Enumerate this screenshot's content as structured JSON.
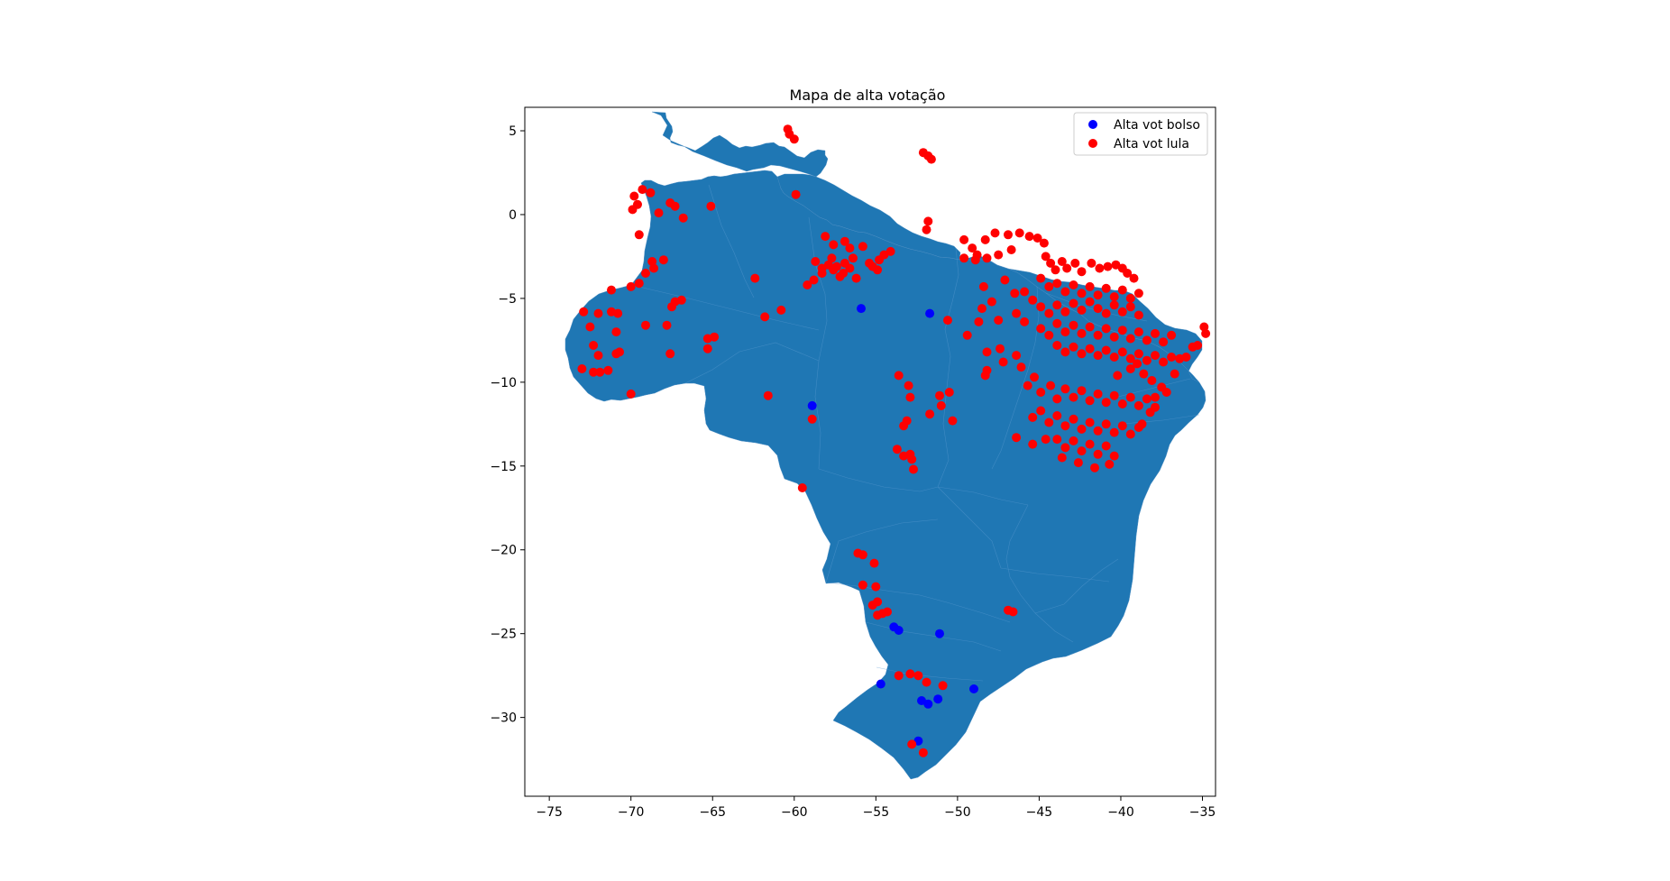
{
  "chart_data": {
    "type": "scatter",
    "title": "Mapa de alta votação",
    "xlabel": "",
    "ylabel": "",
    "xlim": [
      -76.5,
      -34.2
    ],
    "ylim": [
      -34.7,
      6.4
    ],
    "x_ticks": [
      -75,
      -70,
      -65,
      -60,
      -55,
      -50,
      -45,
      -40,
      -35
    ],
    "y_ticks": [
      5,
      0,
      -5,
      -10,
      -15,
      -20,
      -25,
      -30
    ],
    "x_tick_labels": [
      "−75",
      "−70",
      "−65",
      "−60",
      "−55",
      "−50",
      "−45",
      "−40",
      "−35"
    ],
    "y_tick_labels": [
      "5",
      "0",
      "−5",
      "−10",
      "−15",
      "−20",
      "−25",
      "−30"
    ],
    "grid": false,
    "legend_position": "top-right",
    "basemap_color": "#1f77b4",
    "series": [
      {
        "name": "Alta vot bolso",
        "color": "#0000ff",
        "points": [
          [
            -55.9,
            -5.6
          ],
          [
            -51.7,
            -5.9
          ],
          [
            -58.9,
            -11.4
          ],
          [
            -53.9,
            -24.6
          ],
          [
            -53.6,
            -24.8
          ],
          [
            -51.1,
            -25.0
          ],
          [
            -54.7,
            -28.0
          ],
          [
            -49.0,
            -28.3
          ],
          [
            -52.2,
            -29.0
          ],
          [
            -51.8,
            -29.2
          ],
          [
            -51.2,
            -28.9
          ],
          [
            -52.4,
            -31.4
          ]
        ]
      },
      {
        "name": "Alta vot lula",
        "color": "#ff0000",
        "points": [
          [
            -60.4,
            5.1
          ],
          [
            -60.3,
            4.8
          ],
          [
            -60.0,
            4.5
          ],
          [
            -59.9,
            1.2
          ],
          [
            -52.1,
            3.7
          ],
          [
            -51.8,
            3.5
          ],
          [
            -51.6,
            3.3
          ],
          [
            -69.8,
            1.1
          ],
          [
            -69.6,
            0.6
          ],
          [
            -69.9,
            0.3
          ],
          [
            -69.3,
            1.5
          ],
          [
            -68.8,
            1.3
          ],
          [
            -67.6,
            0.7
          ],
          [
            -67.3,
            0.5
          ],
          [
            -66.8,
            -0.2
          ],
          [
            -68.3,
            0.1
          ],
          [
            -65.1,
            0.5
          ],
          [
            -69.5,
            -1.2
          ],
          [
            -68.7,
            -2.8
          ],
          [
            -68.0,
            -2.7
          ],
          [
            -69.1,
            -3.5
          ],
          [
            -69.5,
            -4.1
          ],
          [
            -68.6,
            -3.2
          ],
          [
            -71.2,
            -4.5
          ],
          [
            -70.0,
            -4.3
          ],
          [
            -67.3,
            -5.2
          ],
          [
            -67.5,
            -5.5
          ],
          [
            -66.9,
            -5.1
          ],
          [
            -72.9,
            -5.8
          ],
          [
            -72.0,
            -5.9
          ],
          [
            -71.2,
            -5.8
          ],
          [
            -70.8,
            -5.9
          ],
          [
            -72.5,
            -6.7
          ],
          [
            -70.9,
            -7.0
          ],
          [
            -69.1,
            -6.6
          ],
          [
            -67.8,
            -6.6
          ],
          [
            -72.3,
            -7.8
          ],
          [
            -72.0,
            -8.4
          ],
          [
            -70.7,
            -8.2
          ],
          [
            -70.9,
            -8.3
          ],
          [
            -67.6,
            -8.3
          ],
          [
            -73.0,
            -9.2
          ],
          [
            -72.3,
            -9.4
          ],
          [
            -71.9,
            -9.4
          ],
          [
            -71.4,
            -9.3
          ],
          [
            -70.0,
            -10.7
          ],
          [
            -65.3,
            -7.4
          ],
          [
            -64.9,
            -7.3
          ],
          [
            -65.3,
            -8.0
          ],
          [
            -62.4,
            -3.8
          ],
          [
            -61.8,
            -6.1
          ],
          [
            -60.8,
            -5.7
          ],
          [
            -61.6,
            -10.8
          ],
          [
            -58.7,
            -2.8
          ],
          [
            -58.3,
            -3.2
          ],
          [
            -57.9,
            -3.0
          ],
          [
            -57.6,
            -3.3
          ],
          [
            -57.4,
            -3.1
          ],
          [
            -57.2,
            -3.7
          ],
          [
            -57.0,
            -3.5
          ],
          [
            -56.9,
            -2.9
          ],
          [
            -56.6,
            -3.2
          ],
          [
            -56.4,
            -2.6
          ],
          [
            -56.2,
            -3.8
          ],
          [
            -57.7,
            -2.6
          ],
          [
            -58.1,
            -1.3
          ],
          [
            -57.6,
            -1.8
          ],
          [
            -56.6,
            -2.0
          ],
          [
            -55.8,
            -1.9
          ],
          [
            -55.4,
            -2.9
          ],
          [
            -54.8,
            -2.7
          ],
          [
            -54.5,
            -2.4
          ],
          [
            -54.1,
            -2.2
          ],
          [
            -55.2,
            -3.1
          ],
          [
            -54.9,
            -3.3
          ],
          [
            -56.9,
            -1.6
          ],
          [
            -58.3,
            -3.5
          ],
          [
            -58.8,
            -3.9
          ],
          [
            -51.8,
            -0.4
          ],
          [
            -51.9,
            -0.9
          ],
          [
            -50.6,
            -6.3
          ],
          [
            -59.2,
            -4.2
          ],
          [
            -49.6,
            -1.5
          ],
          [
            -49.1,
            -2.0
          ],
          [
            -48.3,
            -1.5
          ],
          [
            -47.7,
            -1.1
          ],
          [
            -46.9,
            -1.2
          ],
          [
            -46.2,
            -1.1
          ],
          [
            -45.6,
            -1.3
          ],
          [
            -45.1,
            -1.4
          ],
          [
            -44.7,
            -1.7
          ],
          [
            -49.6,
            -2.6
          ],
          [
            -48.8,
            -2.4
          ],
          [
            -48.2,
            -2.6
          ],
          [
            -47.5,
            -2.4
          ],
          [
            -46.7,
            -2.1
          ],
          [
            -44.6,
            -2.5
          ],
          [
            -44.3,
            -2.9
          ],
          [
            -44.0,
            -3.3
          ],
          [
            -43.6,
            -2.8
          ],
          [
            -43.3,
            -3.2
          ],
          [
            -42.8,
            -2.9
          ],
          [
            -42.4,
            -3.4
          ],
          [
            -41.8,
            -2.9
          ],
          [
            -41.3,
            -3.2
          ],
          [
            -40.8,
            -3.1
          ],
          [
            -40.3,
            -3.0
          ],
          [
            -39.9,
            -3.2
          ],
          [
            -39.6,
            -3.5
          ],
          [
            -39.2,
            -3.8
          ],
          [
            -44.9,
            -3.8
          ],
          [
            -44.4,
            -4.3
          ],
          [
            -43.9,
            -4.1
          ],
          [
            -43.4,
            -4.6
          ],
          [
            -42.9,
            -4.2
          ],
          [
            -42.4,
            -4.7
          ],
          [
            -41.9,
            -4.3
          ],
          [
            -41.4,
            -4.8
          ],
          [
            -40.9,
            -4.4
          ],
          [
            -40.4,
            -4.9
          ],
          [
            -39.9,
            -4.5
          ],
          [
            -39.4,
            -5.0
          ],
          [
            -38.9,
            -4.7
          ],
          [
            -45.9,
            -4.6
          ],
          [
            -45.4,
            -5.1
          ],
          [
            -44.9,
            -5.5
          ],
          [
            -44.4,
            -5.9
          ],
          [
            -43.9,
            -5.4
          ],
          [
            -43.4,
            -5.8
          ],
          [
            -42.9,
            -5.3
          ],
          [
            -42.4,
            -5.7
          ],
          [
            -41.9,
            -5.2
          ],
          [
            -41.4,
            -5.6
          ],
          [
            -40.9,
            -5.9
          ],
          [
            -40.4,
            -5.4
          ],
          [
            -39.9,
            -5.8
          ],
          [
            -39.4,
            -5.5
          ],
          [
            -38.9,
            -6.0
          ],
          [
            -46.4,
            -5.9
          ],
          [
            -45.9,
            -6.4
          ],
          [
            -44.9,
            -6.8
          ],
          [
            -44.4,
            -7.2
          ],
          [
            -43.9,
            -6.5
          ],
          [
            -43.4,
            -7.0
          ],
          [
            -42.9,
            -6.6
          ],
          [
            -42.4,
            -7.1
          ],
          [
            -41.9,
            -6.7
          ],
          [
            -41.4,
            -7.2
          ],
          [
            -40.9,
            -6.8
          ],
          [
            -40.4,
            -7.3
          ],
          [
            -39.9,
            -6.9
          ],
          [
            -39.4,
            -7.4
          ],
          [
            -38.9,
            -7.0
          ],
          [
            -38.4,
            -7.5
          ],
          [
            -37.9,
            -7.1
          ],
          [
            -37.4,
            -7.6
          ],
          [
            -36.9,
            -7.2
          ],
          [
            -43.9,
            -7.8
          ],
          [
            -43.4,
            -8.2
          ],
          [
            -42.9,
            -7.9
          ],
          [
            -42.4,
            -8.3
          ],
          [
            -41.9,
            -8.0
          ],
          [
            -41.4,
            -8.4
          ],
          [
            -40.9,
            -8.1
          ],
          [
            -40.4,
            -8.5
          ],
          [
            -39.9,
            -8.2
          ],
          [
            -39.4,
            -8.6
          ],
          [
            -38.9,
            -8.3
          ],
          [
            -38.4,
            -8.7
          ],
          [
            -37.9,
            -8.4
          ],
          [
            -37.4,
            -8.8
          ],
          [
            -36.9,
            -8.5
          ],
          [
            -36.4,
            -8.6
          ],
          [
            -36.0,
            -8.5
          ],
          [
            -34.9,
            -6.7
          ],
          [
            -34.8,
            -7.1
          ],
          [
            -35.3,
            -7.8
          ],
          [
            -35.6,
            -7.9
          ],
          [
            -48.9,
            -2.7
          ],
          [
            -48.4,
            -4.3
          ],
          [
            -47.1,
            -3.9
          ],
          [
            -46.5,
            -4.7
          ],
          [
            -47.9,
            -5.2
          ],
          [
            -48.5,
            -5.6
          ],
          [
            -47.5,
            -6.3
          ],
          [
            -48.7,
            -6.4
          ],
          [
            -49.4,
            -7.2
          ],
          [
            -47.4,
            -8.0
          ],
          [
            -48.2,
            -8.2
          ],
          [
            -47.2,
            -8.8
          ],
          [
            -48.2,
            -9.3
          ],
          [
            -48.3,
            -9.6
          ],
          [
            -46.4,
            -8.4
          ],
          [
            -46.1,
            -9.1
          ],
          [
            -45.7,
            -10.2
          ],
          [
            -45.3,
            -9.7
          ],
          [
            -44.9,
            -10.6
          ],
          [
            -44.3,
            -10.2
          ],
          [
            -43.9,
            -11.0
          ],
          [
            -43.4,
            -10.4
          ],
          [
            -42.9,
            -10.9
          ],
          [
            -42.4,
            -10.5
          ],
          [
            -41.9,
            -11.1
          ],
          [
            -41.4,
            -10.7
          ],
          [
            -40.9,
            -11.2
          ],
          [
            -40.4,
            -10.8
          ],
          [
            -39.9,
            -11.3
          ],
          [
            -39.4,
            -10.9
          ],
          [
            -38.9,
            -11.4
          ],
          [
            -38.4,
            -11.0
          ],
          [
            -37.9,
            -11.5
          ],
          [
            -45.4,
            -12.1
          ],
          [
            -44.9,
            -11.7
          ],
          [
            -44.4,
            -12.4
          ],
          [
            -43.9,
            -12.0
          ],
          [
            -43.4,
            -12.6
          ],
          [
            -42.9,
            -12.2
          ],
          [
            -42.4,
            -12.8
          ],
          [
            -41.9,
            -12.4
          ],
          [
            -41.4,
            -12.9
          ],
          [
            -40.9,
            -12.5
          ],
          [
            -40.4,
            -13.0
          ],
          [
            -39.9,
            -12.6
          ],
          [
            -39.4,
            -13.1
          ],
          [
            -38.9,
            -12.7
          ],
          [
            -43.9,
            -13.4
          ],
          [
            -43.4,
            -13.9
          ],
          [
            -42.9,
            -13.5
          ],
          [
            -42.4,
            -14.1
          ],
          [
            -41.9,
            -13.7
          ],
          [
            -41.4,
            -14.3
          ],
          [
            -40.9,
            -13.8
          ],
          [
            -40.4,
            -14.4
          ],
          [
            -40.7,
            -14.9
          ],
          [
            -41.6,
            -15.1
          ],
          [
            -42.6,
            -14.8
          ],
          [
            -43.6,
            -14.5
          ],
          [
            -44.6,
            -13.4
          ],
          [
            -45.4,
            -13.7
          ],
          [
            -46.4,
            -13.3
          ],
          [
            -38.6,
            -9.5
          ],
          [
            -38.1,
            -9.9
          ],
          [
            -37.5,
            -10.3
          ],
          [
            -37.9,
            -10.9
          ],
          [
            -39.4,
            -9.2
          ],
          [
            -40.2,
            -9.6
          ],
          [
            -39.0,
            -8.9
          ],
          [
            -36.7,
            -9.5
          ],
          [
            -37.2,
            -10.6
          ],
          [
            -38.2,
            -11.8
          ],
          [
            -38.7,
            -12.5
          ],
          [
            -53.6,
            -9.6
          ],
          [
            -53.0,
            -10.2
          ],
          [
            -52.9,
            -10.9
          ],
          [
            -51.7,
            -11.9
          ],
          [
            -51.0,
            -11.4
          ],
          [
            -51.1,
            -10.8
          ],
          [
            -50.5,
            -10.6
          ],
          [
            -50.3,
            -12.3
          ],
          [
            -53.3,
            -12.6
          ],
          [
            -53.1,
            -12.3
          ],
          [
            -53.7,
            -14.0
          ],
          [
            -53.3,
            -14.4
          ],
          [
            -52.9,
            -14.3
          ],
          [
            -52.7,
            -15.2
          ],
          [
            -52.8,
            -14.6
          ],
          [
            -58.9,
            -12.2
          ],
          [
            -59.5,
            -16.3
          ],
          [
            -56.1,
            -20.2
          ],
          [
            -55.8,
            -20.3
          ],
          [
            -55.1,
            -20.8
          ],
          [
            -55.0,
            -22.2
          ],
          [
            -55.8,
            -22.1
          ],
          [
            -54.9,
            -23.1
          ],
          [
            -55.2,
            -23.3
          ],
          [
            -54.6,
            -23.8
          ],
          [
            -54.3,
            -23.7
          ],
          [
            -54.9,
            -23.9
          ],
          [
            -46.9,
            -23.6
          ],
          [
            -46.6,
            -23.7
          ],
          [
            -53.6,
            -27.5
          ],
          [
            -52.9,
            -27.4
          ],
          [
            -52.4,
            -27.5
          ],
          [
            -51.9,
            -27.9
          ],
          [
            -50.9,
            -28.1
          ],
          [
            -52.8,
            -31.6
          ],
          [
            -52.1,
            -32.1
          ]
        ]
      }
    ]
  }
}
